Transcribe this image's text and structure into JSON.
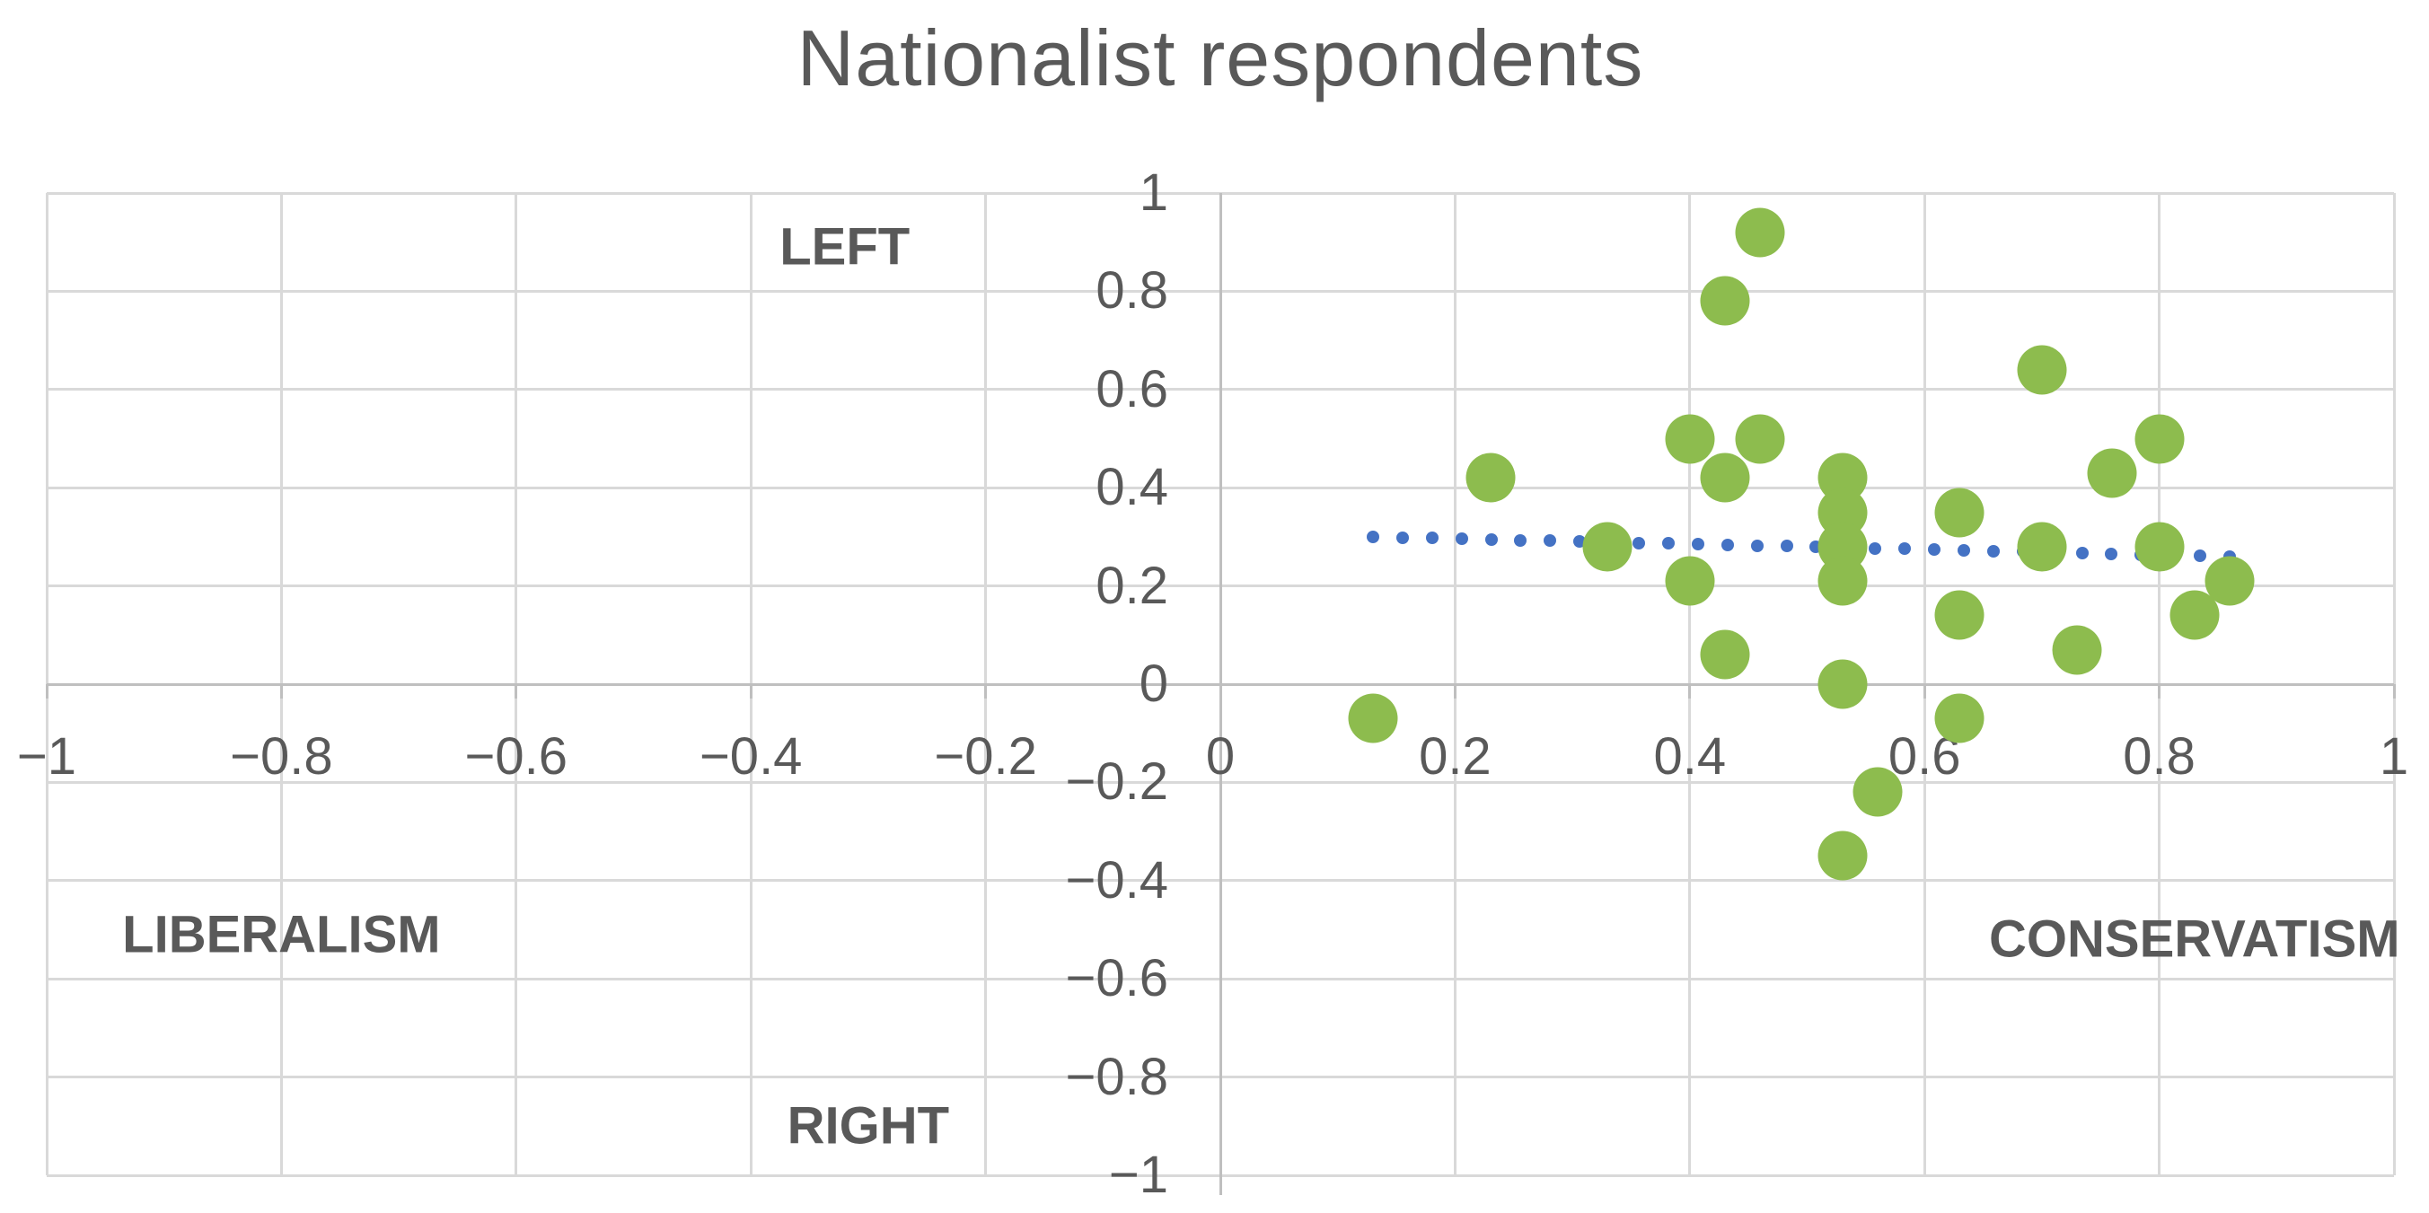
{
  "colors": {
    "marker_green": "#8dbc4e",
    "trendline_blue": "#4472c4",
    "gridline_gray": "#d9d9d9",
    "axis_gray": "#bfbfbf",
    "text_gray": "#595959"
  },
  "chart_data": {
    "type": "scatter",
    "title": "Nationalist respondents",
    "xlabel": "",
    "ylabel": "",
    "xlim": [
      -1,
      1
    ],
    "ylim": [
      -1,
      1
    ],
    "grid": true,
    "legend": "none",
    "x_tick_values": [
      -1,
      -0.8,
      -0.6,
      -0.4,
      -0.2,
      0,
      0.2,
      0.4,
      0.6,
      0.8,
      1
    ],
    "x_tick_labels": [
      "−1",
      "−0.8",
      "−0.6",
      "−0.4",
      "−0.2",
      "0",
      "0.2",
      "0.4",
      "0.6",
      "0.8",
      "1"
    ],
    "y_tick_values": [
      1,
      0.8,
      0.6,
      0.4,
      0.2,
      0,
      -0.2,
      -0.4,
      -0.6,
      -0.8,
      -1
    ],
    "y_tick_labels": [
      "1",
      "0.8",
      "0.6",
      "0.4",
      "0.2",
      "0",
      "−0.2",
      "−0.4",
      "−0.6",
      "−0.8",
      "−1"
    ],
    "series": [
      {
        "name": "Nationalist respondents",
        "marker_color": "#8dbc4e",
        "points": [
          [
            0.13,
            -0.07
          ],
          [
            0.23,
            0.42
          ],
          [
            0.33,
            0.28
          ],
          [
            0.4,
            0.5
          ],
          [
            0.4,
            0.21
          ],
          [
            0.43,
            0.78
          ],
          [
            0.43,
            0.42
          ],
          [
            0.43,
            0.06
          ],
          [
            0.46,
            0.92
          ],
          [
            0.46,
            0.5
          ],
          [
            0.53,
            0.42
          ],
          [
            0.53,
            0.35
          ],
          [
            0.53,
            0.28
          ],
          [
            0.53,
            0.21
          ],
          [
            0.53,
            0.0
          ],
          [
            0.53,
            -0.35
          ],
          [
            0.56,
            -0.22
          ],
          [
            0.63,
            0.35
          ],
          [
            0.63,
            0.14
          ],
          [
            0.63,
            -0.07
          ],
          [
            0.7,
            0.64
          ],
          [
            0.7,
            0.28
          ],
          [
            0.73,
            0.07
          ],
          [
            0.76,
            0.43
          ],
          [
            0.8,
            0.5
          ],
          [
            0.8,
            0.28
          ],
          [
            0.83,
            0.14
          ],
          [
            0.86,
            0.21
          ]
        ]
      }
    ],
    "trendline": {
      "type": "linear",
      "style": "dotted",
      "color": "#4472c4",
      "x_start": 0.13,
      "y_start": 0.3,
      "x_end": 0.86,
      "y_end": 0.26
    },
    "annotations": [
      {
        "text": "LEFT",
        "x": -0.32,
        "y": 0.89
      },
      {
        "text": "LIBERALISM",
        "x": -0.8,
        "y": -0.51
      },
      {
        "text": "CONSERVATISM",
        "x": 0.83,
        "y": -0.52
      },
      {
        "text": "RIGHT",
        "x": -0.3,
        "y": -0.9
      }
    ]
  }
}
